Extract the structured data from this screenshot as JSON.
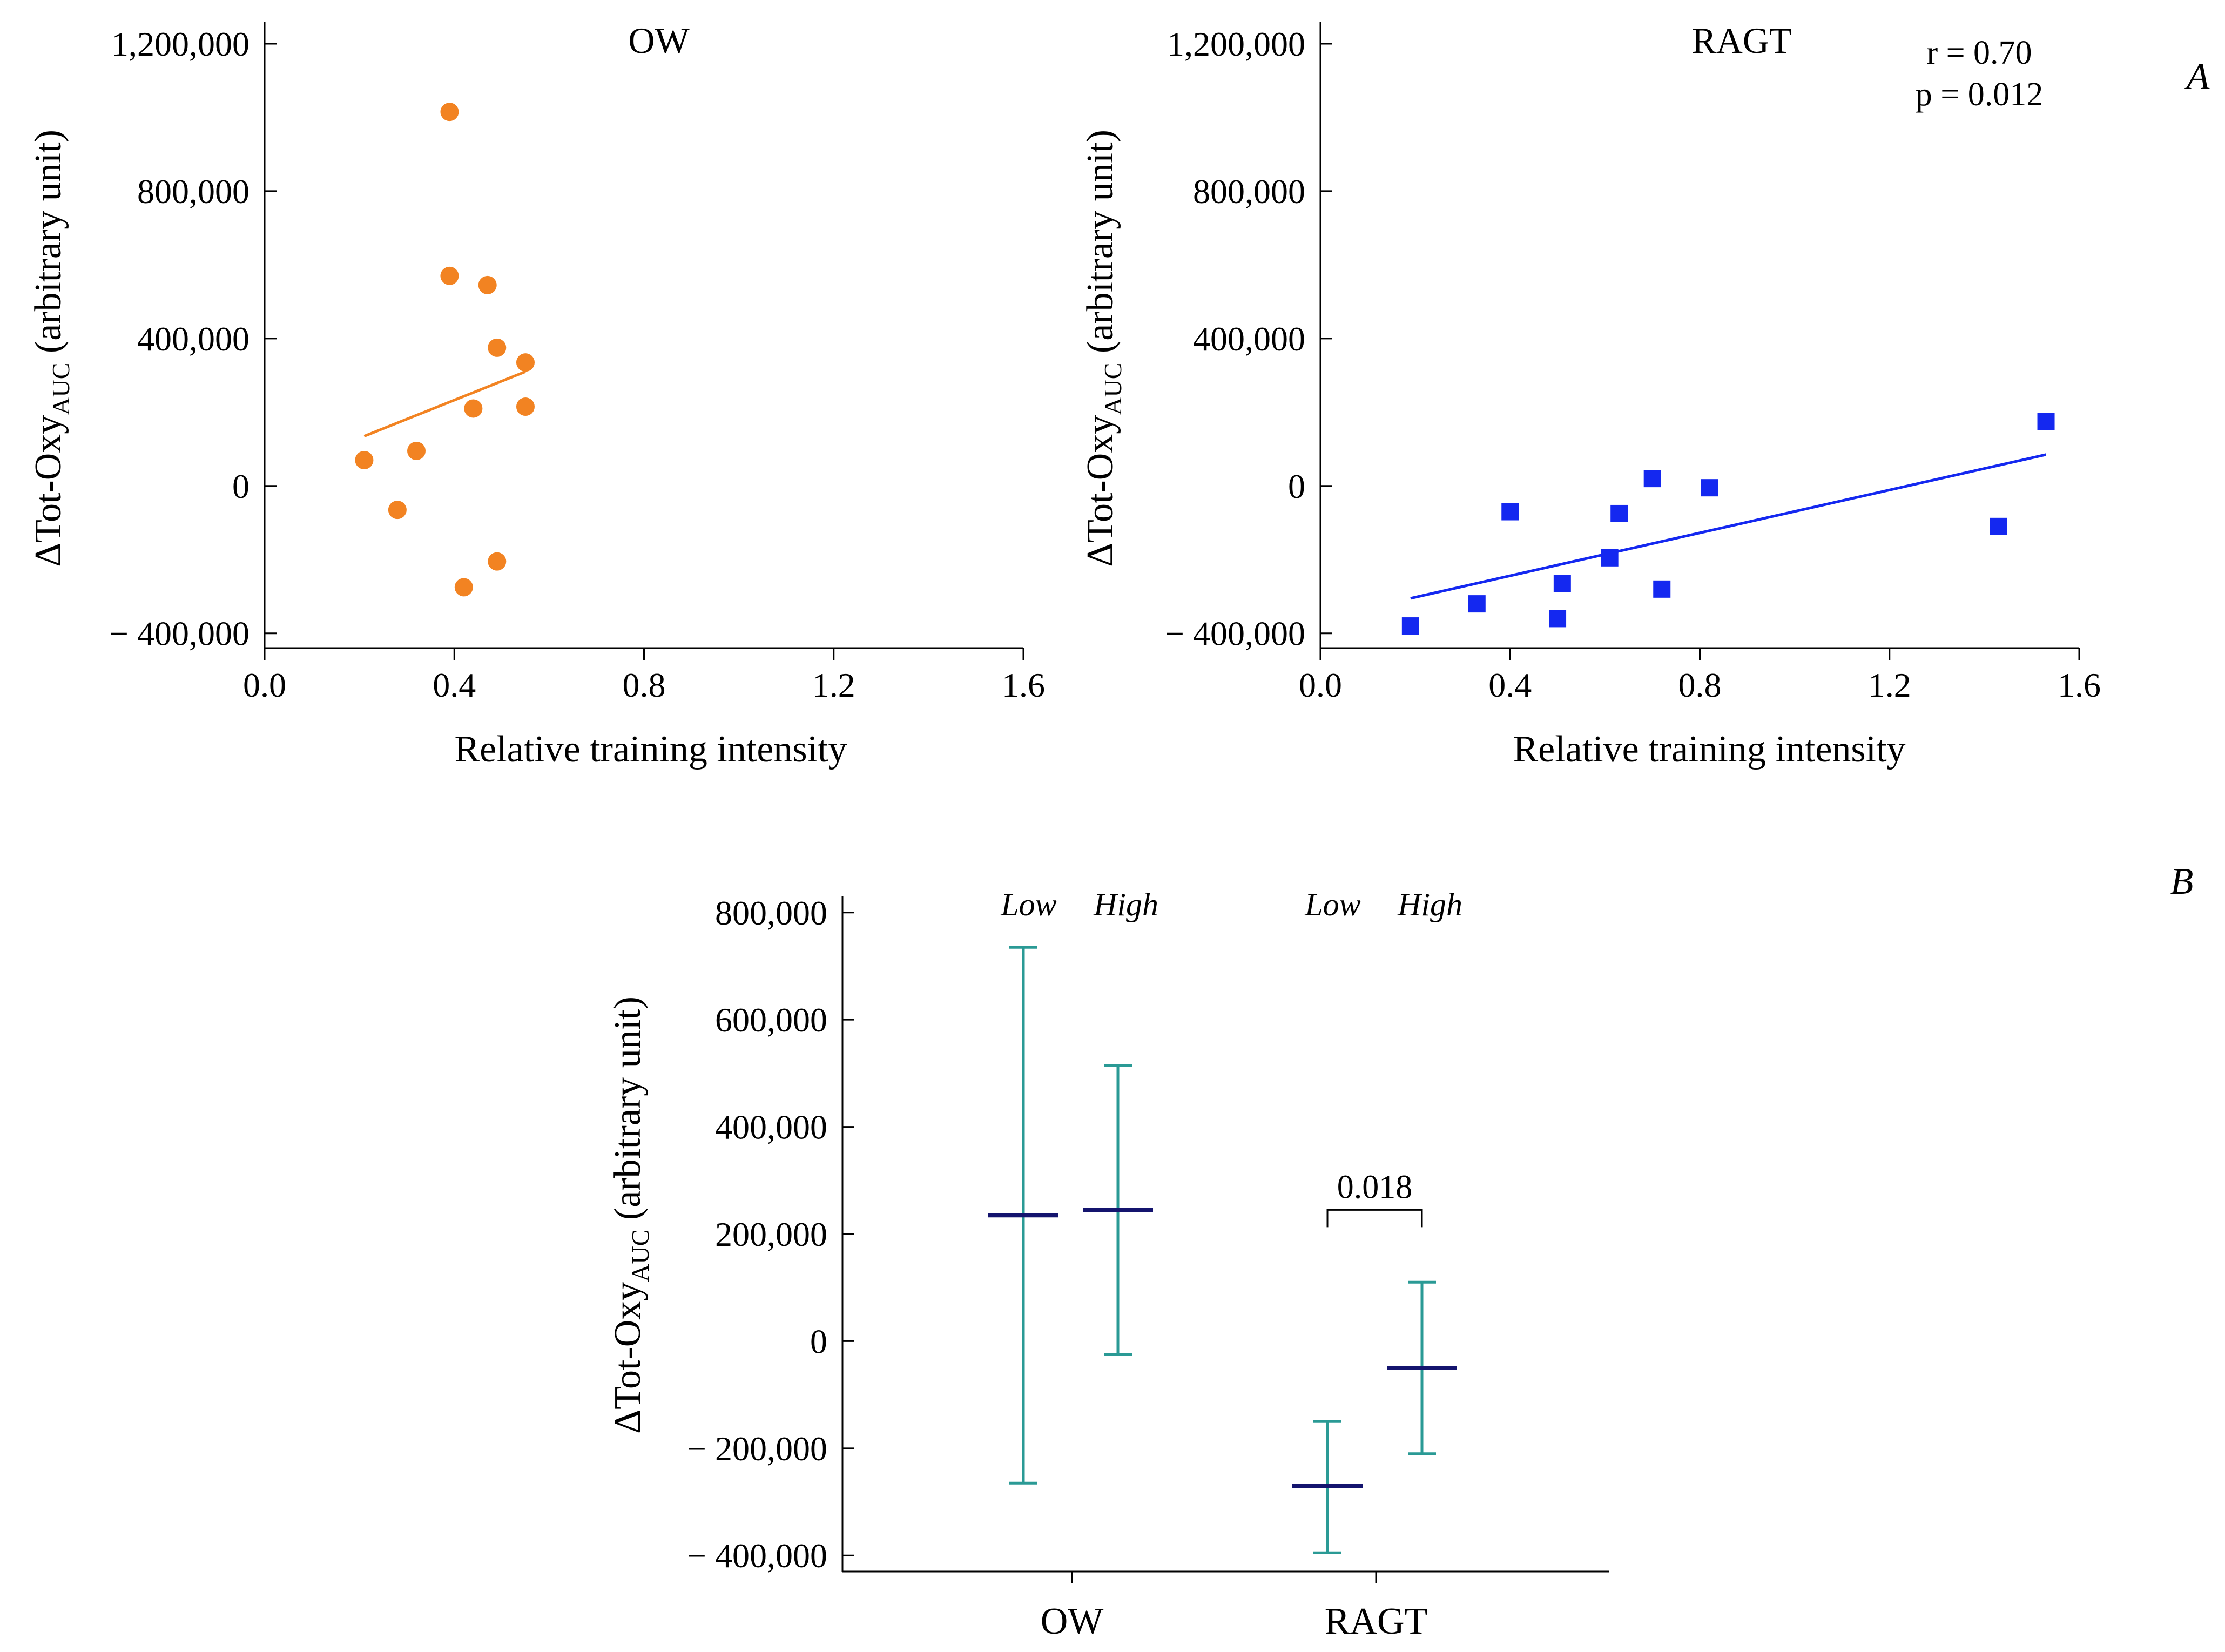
{
  "panel_labels": {
    "a": "A",
    "b": "B"
  },
  "chart_data": [
    {
      "type": "scatter",
      "title": "OW",
      "xlabel": "Relative training intensity",
      "ylabel": "ΔTot-Oxy",
      "ylabel_subscript": "AUC",
      "ylabel_suffix": " (arbitrary unit)",
      "xlim": [
        0,
        1.6
      ],
      "ylim": [
        -400000,
        1200000
      ],
      "xticks": [
        0.0,
        0.4,
        0.8,
        1.2,
        1.6
      ],
      "xtick_labels": [
        "0.0",
        "0.4",
        "0.8",
        "1.2",
        "1.6"
      ],
      "yticks": [
        -400000,
        0,
        400000,
        800000,
        1200000
      ],
      "ytick_labels": [
        "− 400,000",
        "0",
        "400,000",
        "800,000",
        "1,200,000"
      ],
      "marker": "circle",
      "color": "#F28322",
      "points": [
        {
          "x": 0.21,
          "y": 70000
        },
        {
          "x": 0.28,
          "y": -65000
        },
        {
          "x": 0.32,
          "y": 95000
        },
        {
          "x": 0.39,
          "y": 1015000
        },
        {
          "x": 0.39,
          "y": 570000
        },
        {
          "x": 0.42,
          "y": -275000
        },
        {
          "x": 0.44,
          "y": 210000
        },
        {
          "x": 0.47,
          "y": 545000
        },
        {
          "x": 0.49,
          "y": 375000
        },
        {
          "x": 0.49,
          "y": -205000
        },
        {
          "x": 0.55,
          "y": 335000
        },
        {
          "x": 0.55,
          "y": 215000
        }
      ],
      "fit": {
        "x1": 0.21,
        "y1": 135000,
        "x2": 0.55,
        "y2": 310000
      }
    },
    {
      "type": "scatter",
      "title": "RAGT",
      "annotation_r": "r = 0.70",
      "annotation_p": "p = 0.012",
      "xlabel": "Relative training intensity",
      "ylabel": "ΔTot-Oxy",
      "ylabel_subscript": "AUC",
      "ylabel_suffix": " (arbitrary unit)",
      "xlim": [
        0,
        1.6
      ],
      "ylim": [
        -400000,
        1200000
      ],
      "xticks": [
        0.0,
        0.4,
        0.8,
        1.2,
        1.6
      ],
      "xtick_labels": [
        "0.0",
        "0.4",
        "0.8",
        "1.2",
        "1.6"
      ],
      "yticks": [
        -400000,
        0,
        400000,
        800000,
        1200000
      ],
      "ytick_labels": [
        "− 400,000",
        "0",
        "400,000",
        "800,000",
        "1,200,000"
      ],
      "marker": "square",
      "color": "#1428F0",
      "points": [
        {
          "x": 0.19,
          "y": -380000
        },
        {
          "x": 0.33,
          "y": -320000
        },
        {
          "x": 0.4,
          "y": -70000
        },
        {
          "x": 0.5,
          "y": -360000
        },
        {
          "x": 0.51,
          "y": -265000
        },
        {
          "x": 0.61,
          "y": -195000
        },
        {
          "x": 0.63,
          "y": -75000
        },
        {
          "x": 0.7,
          "y": 20000
        },
        {
          "x": 0.72,
          "y": -280000
        },
        {
          "x": 0.82,
          "y": -5000
        },
        {
          "x": 1.43,
          "y": -110000
        },
        {
          "x": 1.53,
          "y": 175000
        }
      ],
      "fit": {
        "x1": 0.19,
        "y1": -305000,
        "x2": 1.53,
        "y2": 85000
      }
    },
    {
      "type": "errorbar",
      "ylabel": "ΔTot-Oxy",
      "ylabel_subscript": "AUC",
      "ylabel_suffix": " (arbitrary unit)",
      "ylim": [
        -430000,
        830000
      ],
      "yticks": [
        -400000,
        -200000,
        0,
        200000,
        400000,
        600000,
        800000
      ],
      "ytick_labels": [
        "− 400,000",
        "− 200,000",
        "0",
        "200,000",
        "400,000",
        "600,000",
        "800,000"
      ],
      "groups": [
        "OW",
        "RAGT"
      ],
      "sublabels": [
        "Low",
        "High"
      ],
      "mean_color": "#14146E",
      "bar_color": "#2A9A95",
      "series": [
        {
          "group": "OW",
          "level": "Low",
          "mean": 235000,
          "lower": -265000,
          "upper": 735000
        },
        {
          "group": "OW",
          "level": "High",
          "mean": 245000,
          "lower": -25000,
          "upper": 515000
        },
        {
          "group": "RAGT",
          "level": "Low",
          "mean": -270000,
          "lower": -395000,
          "upper": -150000
        },
        {
          "group": "RAGT",
          "level": "High",
          "mean": -50000,
          "lower": -210000,
          "upper": 110000
        }
      ],
      "bracket": {
        "label": "0.018",
        "y": 245000
      }
    }
  ]
}
